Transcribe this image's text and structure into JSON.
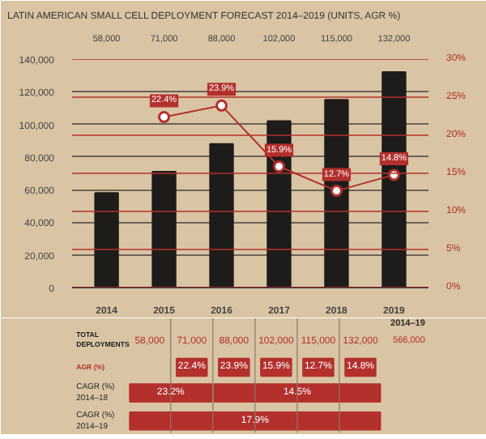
{
  "chart_data": {
    "type": "bar",
    "title": "LATIN AMERICAN SMALL CELL DEPLOYMENT FORECAST 2014–2019 (UNITS, AGR %)",
    "categories": [
      "2014",
      "2015",
      "2016",
      "2017",
      "2018",
      "2019"
    ],
    "series": [
      {
        "name": "TOTAL DEPLOYMENTS",
        "color": "#1e1c1a",
        "values": [
          58000,
          71000,
          88000,
          102000,
          115000,
          132000
        ],
        "value_labels": [
          "58,000",
          "71,000",
          "88,000",
          "102,000",
          "115,000",
          "132,000"
        ]
      },
      {
        "name": "AGR (%)",
        "type": "line",
        "axis": "y2",
        "color": "#b3302c",
        "marker": "circle",
        "values": [
          null,
          22.4,
          23.9,
          15.9,
          12.7,
          14.8
        ],
        "value_labels": [
          null,
          "22.4%",
          "23.9%",
          "15.9%",
          "12.7%",
          "14.8%"
        ]
      }
    ],
    "ylim": [
      0,
      140000
    ],
    "yticks": [
      {
        "value": 0,
        "label": "0"
      },
      {
        "value": 20000,
        "label": "20,000"
      },
      {
        "value": 40000,
        "label": "40,000"
      },
      {
        "value": 60000,
        "label": "60,000"
      },
      {
        "value": 80000,
        "label": "80,000"
      },
      {
        "value": 100000,
        "label": "100,000"
      },
      {
        "value": 120000,
        "label": "120,000"
      },
      {
        "value": 140000,
        "label": "140,000"
      }
    ],
    "y2lim": [
      0,
      30
    ],
    "y2ticks": [
      {
        "value": 0,
        "label": "0%"
      },
      {
        "value": 5,
        "label": "5%"
      },
      {
        "value": 10,
        "label": "10%"
      },
      {
        "value": 15,
        "label": "15%"
      },
      {
        "value": 20,
        "label": "20%"
      },
      {
        "value": 25,
        "label": "25%"
      },
      {
        "value": 30,
        "label": "30%"
      }
    ],
    "grid": "y",
    "legend": false,
    "annotations": [
      "2014–19",
      "566,000",
      "CAGR (%) 2014–18",
      "23.2%",
      "14.5%",
      "CAGR (%) 2014–19",
      "17.9%"
    ]
  }
}
